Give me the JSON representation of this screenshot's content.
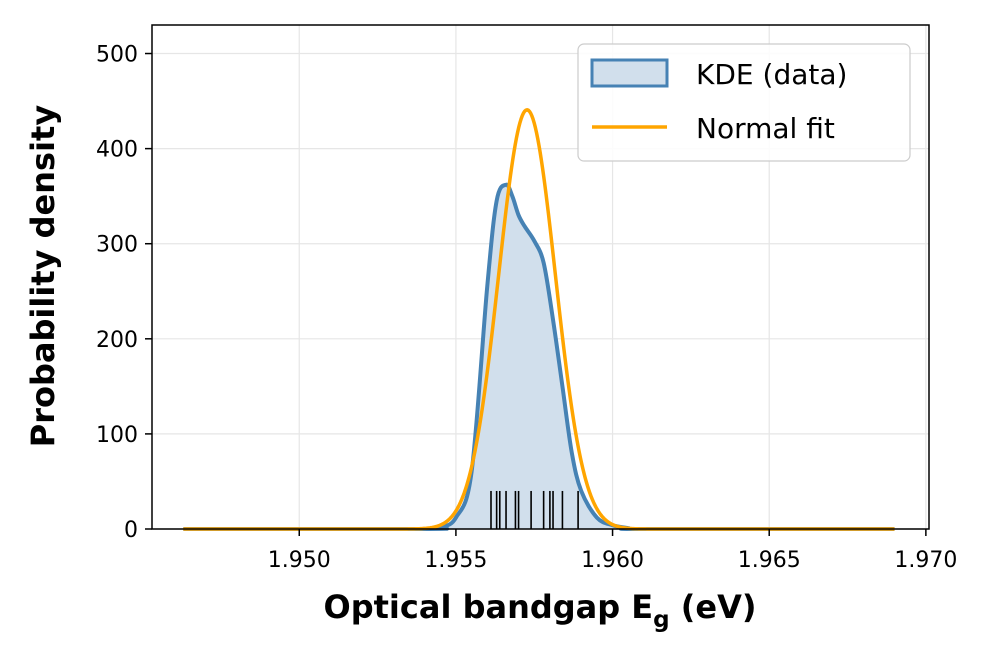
{
  "chart_data": {
    "type": "area",
    "title": "",
    "xlabel": "Optical bandgap E",
    "xlabel_subscript": "g",
    "xlabel_suffix": " (eV)",
    "ylabel": "Probability density",
    "xlim": [
      1.9453,
      1.9701
    ],
    "ylim": [
      0,
      530
    ],
    "x_ticks": [
      1.95,
      1.955,
      1.96,
      1.965,
      1.97
    ],
    "x_tick_labels": [
      "1.950",
      "1.955",
      "1.960",
      "1.965",
      "1.970"
    ],
    "y_ticks": [
      0,
      100,
      200,
      300,
      400,
      500
    ],
    "y_tick_labels": [
      "0",
      "100",
      "200",
      "300",
      "400",
      "500"
    ],
    "grid": true,
    "legend_position": "top-right",
    "series": [
      {
        "name": "KDE (data)",
        "kind": "kde-area",
        "color": "#4682b4",
        "fill": "#d1dfec",
        "x": [
          1.9463,
          1.954,
          1.9545,
          1.955,
          1.9555,
          1.956,
          1.9563,
          1.9566,
          1.9568,
          1.957,
          1.9572,
          1.9575,
          1.9578,
          1.9581,
          1.9584,
          1.9587,
          1.959,
          1.9595,
          1.96,
          1.9605,
          1.961,
          1.969
        ],
        "y": [
          0,
          0,
          2,
          12,
          60,
          255,
          345,
          362,
          350,
          330,
          318,
          303,
          280,
          220,
          150,
          80,
          40,
          12,
          4,
          1,
          0,
          0
        ]
      },
      {
        "name": "Normal fit",
        "kind": "line",
        "color": "#ffa500",
        "mean": 1.95727,
        "std": 0.000905,
        "x_range": [
          1.9463,
          1.969
        ]
      }
    ],
    "rug": {
      "color": "#000000",
      "height": 40,
      "x": [
        1.95612,
        1.9563,
        1.9564,
        1.9566,
        1.9569,
        1.957,
        1.9574,
        1.9578,
        1.958,
        1.9581,
        1.9584,
        1.9589
      ]
    }
  }
}
